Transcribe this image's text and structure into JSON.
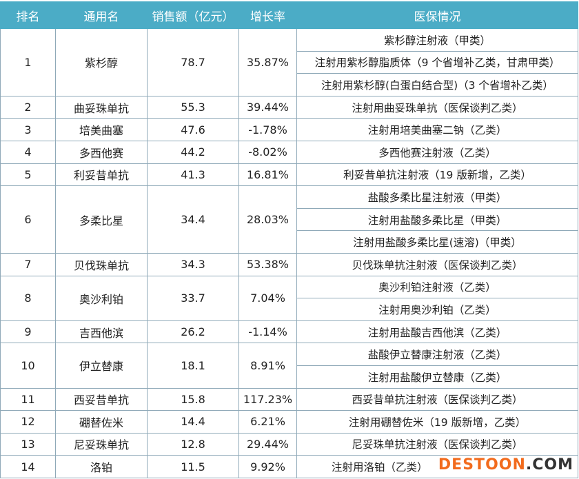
{
  "headers": [
    "排名",
    "通用名",
    "销售额（亿元）",
    "增长率",
    "医保情况"
  ],
  "rows": [
    {
      "rank": "1",
      "name": "紫杉醇",
      "sales": "78.7",
      "growth": "35.87%",
      "insurance": [
        "紫杉醇注射液（甲类）",
        "注射用紫杉醇脂质体（9 个省增补乙类，甘肃甲类）",
        "注射用紫杉醇(白蛋白结合型)（3 个省增补乙类）"
      ]
    },
    {
      "rank": "2",
      "name": "曲妥珠单抗",
      "sales": "55.3",
      "growth": "39.44%",
      "insurance": [
        "注射用曲妥珠单抗（医保谈判乙类）"
      ]
    },
    {
      "rank": "3",
      "name": "培美曲塞",
      "sales": "47.6",
      "growth": "-1.78%",
      "insurance": [
        "注射用培美曲塞二钠（乙类）"
      ]
    },
    {
      "rank": "4",
      "name": "多西他赛",
      "sales": "44.2",
      "growth": "-8.02%",
      "insurance": [
        "多西他赛注射液（乙类）"
      ]
    },
    {
      "rank": "5",
      "name": "利妥昔单抗",
      "sales": "41.3",
      "growth": "16.81%",
      "insurance": [
        "利妥昔单抗注射液（19 版新增，乙类）"
      ]
    },
    {
      "rank": "6",
      "name": "多柔比星",
      "sales": "34.4",
      "growth": "28.03%",
      "insurance": [
        "盐酸多柔比星注射液（甲类）",
        "注射用盐酸多柔比星（甲类）",
        "注射用盐酸多柔比星(速溶)（甲类）"
      ]
    },
    {
      "rank": "7",
      "name": "贝伐珠单抗",
      "sales": "34.3",
      "growth": "53.38%",
      "insurance": [
        "贝伐珠单抗注射液（医保谈判乙类）"
      ]
    },
    {
      "rank": "8",
      "name": "奥沙利铂",
      "sales": "33.7",
      "growth": "7.04%",
      "insurance": [
        "奥沙利铂注射液（乙类）",
        "注射用奥沙利铂（乙类）"
      ]
    },
    {
      "rank": "9",
      "name": "吉西他滨",
      "sales": "26.2",
      "growth": "-1.14%",
      "insurance": [
        "注射用盐酸吉西他滨（乙类）"
      ]
    },
    {
      "rank": "10",
      "name": "伊立替康",
      "sales": "18.1",
      "growth": "8.91%",
      "insurance": [
        "盐酸伊立替康注射液（乙类）",
        "注射用盐酸伊立替康（乙类）"
      ]
    },
    {
      "rank": "11",
      "name": "西妥昔单抗",
      "sales": "15.8",
      "growth": "117.23%",
      "insurance": [
        "西妥昔单抗注射液（医保谈判乙类）"
      ]
    },
    {
      "rank": "12",
      "name": "硼替佐米",
      "sales": "14.4",
      "growth": "6.21%",
      "insurance": [
        "注射用硼替佐米（19 版新增，乙类）"
      ]
    },
    {
      "rank": "13",
      "name": "尼妥珠单抗",
      "sales": "12.8",
      "growth": "29.44%",
      "insurance": [
        "尼妥珠单抗注射液（医保谈判乙类）"
      ]
    },
    {
      "rank": "14",
      "name": "洛铂",
      "sales": "11.5",
      "growth": "9.92%",
      "insurance": [
        "注射用洛铂（乙类）"
      ]
    }
  ],
  "watermark": {
    "main": "DESTOON",
    "suffix": ".COM"
  },
  "colors": {
    "header_bg": "#4bacc6",
    "border": "#8fa9b8",
    "watermark": "#f26b1d"
  }
}
